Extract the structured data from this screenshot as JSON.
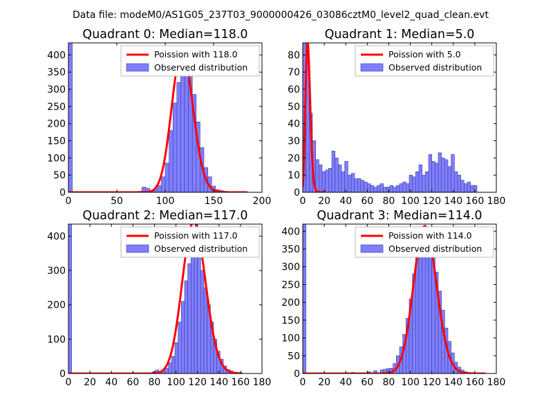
{
  "figure_title": "Data file: modeM0/AS1G05_237T03_9000000426_03086cztM0_level2_quad_clean.evt",
  "chart_data": [
    {
      "type": "bar",
      "title": "Quadrant 0: Median=118.0",
      "xlim": [
        0,
        200
      ],
      "ylim": [
        0,
        435
      ],
      "xticks": [
        0,
        50,
        100,
        150,
        200
      ],
      "yticks": [
        0,
        50,
        100,
        150,
        200,
        250,
        300,
        350,
        400
      ],
      "legend": [
        "Poission with 118.0",
        "Observed distribution"
      ],
      "legend_position": "top-right",
      "bin_width": 4,
      "bins": [
        [
          0,
          435
        ],
        [
          72,
          3
        ],
        [
          76,
          15
        ],
        [
          80,
          12
        ],
        [
          84,
          5
        ],
        [
          88,
          10
        ],
        [
          92,
          20
        ],
        [
          96,
          45
        ],
        [
          100,
          85
        ],
        [
          104,
          180
        ],
        [
          108,
          260
        ],
        [
          112,
          320
        ],
        [
          116,
          370
        ],
        [
          120,
          395
        ],
        [
          124,
          365
        ],
        [
          128,
          285
        ],
        [
          132,
          205
        ],
        [
          136,
          130
        ],
        [
          140,
          72
        ],
        [
          144,
          45
        ],
        [
          148,
          18
        ],
        [
          152,
          8
        ],
        [
          156,
          5
        ],
        [
          160,
          3
        ]
      ],
      "series_hist_mean": 118.0,
      "series_poisson_mean": 118.0,
      "curve_x_range": [
        0,
        185
      ]
    },
    {
      "type": "bar",
      "title": "Quadrant 1: Median=5.0",
      "xlim": [
        0,
        180
      ],
      "ylim": [
        0,
        87
      ],
      "xticks": [
        0,
        20,
        40,
        60,
        80,
        100,
        120,
        140,
        160,
        180
      ],
      "yticks": [
        0,
        10,
        20,
        30,
        40,
        50,
        60,
        70,
        80
      ],
      "legend": [
        "Poission with 5.0",
        "Observed distribution"
      ],
      "legend_position": "top-right",
      "bin_width": 3,
      "bins": [
        [
          0,
          87
        ],
        [
          3,
          78
        ],
        [
          6,
          46
        ],
        [
          9,
          30
        ],
        [
          12,
          19
        ],
        [
          15,
          16
        ],
        [
          18,
          12
        ],
        [
          21,
          13
        ],
        [
          24,
          14
        ],
        [
          27,
          24
        ],
        [
          30,
          20
        ],
        [
          33,
          16
        ],
        [
          36,
          12
        ],
        [
          39,
          18
        ],
        [
          42,
          10
        ],
        [
          45,
          11
        ],
        [
          48,
          8
        ],
        [
          51,
          8
        ],
        [
          54,
          7
        ],
        [
          57,
          6
        ],
        [
          60,
          5
        ],
        [
          63,
          4
        ],
        [
          66,
          3
        ],
        [
          69,
          4
        ],
        [
          72,
          5
        ],
        [
          75,
          3
        ],
        [
          78,
          3
        ],
        [
          81,
          4
        ],
        [
          84,
          3
        ],
        [
          87,
          4
        ],
        [
          90,
          5
        ],
        [
          93,
          6
        ],
        [
          96,
          5
        ],
        [
          99,
          10
        ],
        [
          102,
          9
        ],
        [
          105,
          12
        ],
        [
          108,
          16
        ],
        [
          111,
          10
        ],
        [
          114,
          12
        ],
        [
          117,
          22
        ],
        [
          120,
          18
        ],
        [
          123,
          17
        ],
        [
          126,
          23
        ],
        [
          129,
          20
        ],
        [
          132,
          19
        ],
        [
          135,
          15
        ],
        [
          138,
          22
        ],
        [
          141,
          12
        ],
        [
          144,
          10
        ],
        [
          147,
          7
        ],
        [
          150,
          5
        ],
        [
          153,
          6
        ],
        [
          156,
          4
        ],
        [
          159,
          4
        ]
      ],
      "series_poisson_mean": 5.0,
      "curve_x_range": [
        0,
        20
      ]
    },
    {
      "type": "bar",
      "title": "Quadrant 2: Median=117.0",
      "xlim": [
        0,
        180
      ],
      "ylim": [
        0,
        435
      ],
      "xticks": [
        0,
        20,
        40,
        60,
        80,
        100,
        120,
        140,
        160,
        180
      ],
      "yticks": [
        0,
        100,
        200,
        300,
        400
      ],
      "legend": [
        "Poission with 117.0",
        "Observed distribution"
      ],
      "legend_position": "top-right",
      "bin_width": 3,
      "bins": [
        [
          0,
          435
        ],
        [
          72,
          2
        ],
        [
          78,
          5
        ],
        [
          81,
          10
        ],
        [
          84,
          6
        ],
        [
          87,
          8
        ],
        [
          90,
          15
        ],
        [
          93,
          32
        ],
        [
          96,
          50
        ],
        [
          99,
          90
        ],
        [
          102,
          150
        ],
        [
          105,
          210
        ],
        [
          108,
          270
        ],
        [
          111,
          320
        ],
        [
          114,
          340
        ],
        [
          117,
          420
        ],
        [
          120,
          345
        ],
        [
          123,
          300
        ],
        [
          126,
          250
        ],
        [
          129,
          200
        ],
        [
          132,
          150
        ],
        [
          135,
          100
        ],
        [
          138,
          65
        ],
        [
          141,
          42
        ],
        [
          144,
          22
        ],
        [
          147,
          12
        ],
        [
          150,
          8
        ],
        [
          153,
          4
        ],
        [
          156,
          2
        ]
      ],
      "series_poisson_mean": 117.0,
      "curve_x_range": [
        0,
        162
      ]
    },
    {
      "type": "bar",
      "title": "Quadrant 3: Median=114.0",
      "xlim": [
        0,
        180
      ],
      "ylim": [
        0,
        420
      ],
      "xticks": [
        0,
        20,
        40,
        60,
        80,
        100,
        120,
        140,
        160,
        180
      ],
      "yticks": [
        0,
        50,
        100,
        150,
        200,
        250,
        300,
        350,
        400
      ],
      "legend": [
        "Poission with 114.0",
        "Observed distribution"
      ],
      "legend_position": "top-right",
      "bin_width": 3,
      "bins": [
        [
          0,
          420
        ],
        [
          45,
          3
        ],
        [
          60,
          5
        ],
        [
          66,
          8
        ],
        [
          72,
          10
        ],
        [
          75,
          12
        ],
        [
          78,
          14
        ],
        [
          81,
          15
        ],
        [
          84,
          28
        ],
        [
          87,
          50
        ],
        [
          90,
          75
        ],
        [
          93,
          110
        ],
        [
          96,
          155
        ],
        [
          99,
          210
        ],
        [
          102,
          280
        ],
        [
          105,
          325
        ],
        [
          108,
          345
        ],
        [
          111,
          375
        ],
        [
          114,
          395
        ],
        [
          117,
          365
        ],
        [
          120,
          330
        ],
        [
          123,
          285
        ],
        [
          126,
          232
        ],
        [
          129,
          178
        ],
        [
          132,
          128
        ],
        [
          135,
          90
        ],
        [
          138,
          58
        ],
        [
          141,
          32
        ],
        [
          144,
          18
        ],
        [
          147,
          10
        ],
        [
          150,
          5
        ],
        [
          153,
          3
        ]
      ],
      "series_poisson_mean": 114.0,
      "curve_x_range": [
        0,
        170
      ]
    }
  ],
  "colors": {
    "bar_fill": "#7f7fff",
    "bar_edge": "#3a3a99",
    "curve": "#ff0000",
    "curve_soft": "#ff8c8c",
    "axis": "#000000",
    "legend_edge": "#bbbbbb"
  }
}
